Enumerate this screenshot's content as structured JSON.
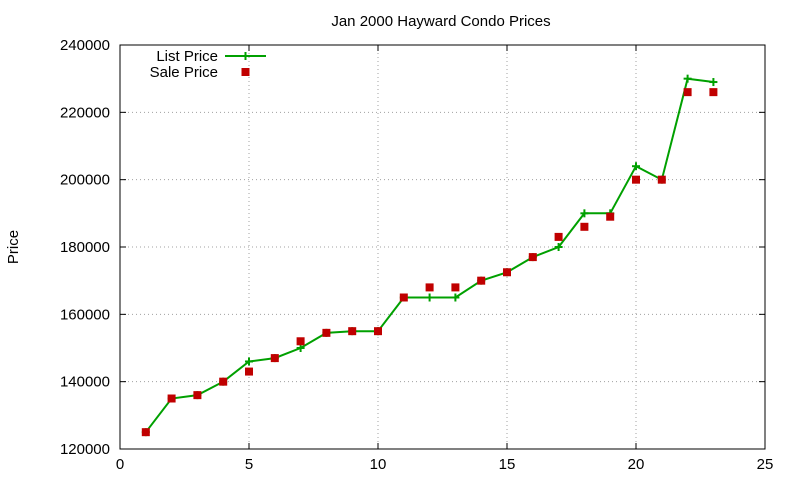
{
  "chart_data": {
    "type": "line",
    "title": "Jan 2000 Hayward Condo Prices",
    "xlabel": "",
    "ylabel": "Price",
    "xlim": [
      0,
      25
    ],
    "ylim": [
      120000,
      240000
    ],
    "x_ticks": [
      0,
      5,
      10,
      15,
      20,
      25
    ],
    "y_ticks": [
      120000,
      140000,
      160000,
      180000,
      200000,
      220000,
      240000
    ],
    "grid": true,
    "legend_position": "top-left",
    "series": [
      {
        "name": "List Price",
        "style": "linespoints",
        "marker": "plus",
        "color": "#00a000",
        "points": [
          [
            1,
            125000
          ],
          [
            2,
            135000
          ],
          [
            3,
            136000
          ],
          [
            4,
            140000
          ],
          [
            5,
            146000
          ],
          [
            6,
            147000
          ],
          [
            7,
            150000
          ],
          [
            8,
            154500
          ],
          [
            9,
            155000
          ],
          [
            10,
            155000
          ],
          [
            11,
            165000
          ],
          [
            12,
            165000
          ],
          [
            13,
            165000
          ],
          [
            14,
            170000
          ],
          [
            15,
            172500
          ],
          [
            16,
            177000
          ],
          [
            17,
            180000
          ],
          [
            18,
            190000
          ],
          [
            19,
            190000
          ],
          [
            20,
            204000
          ],
          [
            21,
            200000
          ],
          [
            22,
            230000
          ],
          [
            23,
            229000
          ]
        ]
      },
      {
        "name": "Sale Price",
        "style": "points",
        "marker": "square",
        "color": "#c00000",
        "points": [
          [
            1,
            125000
          ],
          [
            2,
            135000
          ],
          [
            3,
            136000
          ],
          [
            4,
            140000
          ],
          [
            5,
            143000
          ],
          [
            6,
            147000
          ],
          [
            7,
            152000
          ],
          [
            8,
            154500
          ],
          [
            9,
            155000
          ],
          [
            10,
            155000
          ],
          [
            11,
            165000
          ],
          [
            12,
            168000
          ],
          [
            13,
            168000
          ],
          [
            14,
            170000
          ],
          [
            15,
            172500
          ],
          [
            16,
            177000
          ],
          [
            17,
            183000
          ],
          [
            18,
            186000
          ],
          [
            19,
            189000
          ],
          [
            20,
            200000
          ],
          [
            21,
            200000
          ],
          [
            22,
            226000
          ],
          [
            23,
            226000
          ]
        ]
      }
    ]
  }
}
